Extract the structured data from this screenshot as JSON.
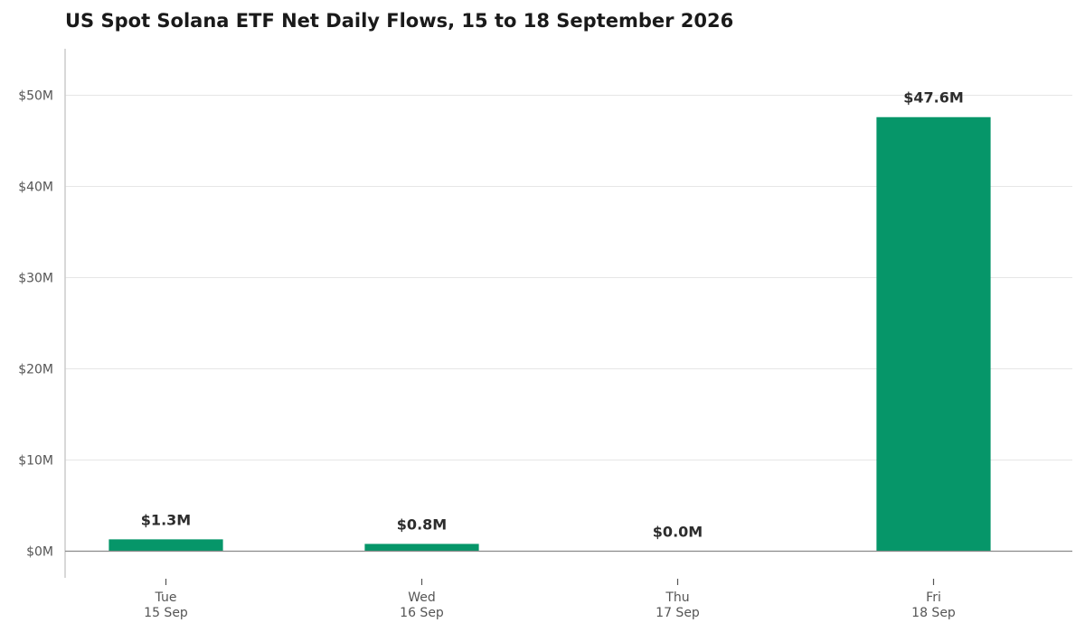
{
  "chart_data": {
    "type": "bar",
    "title": "US Spot Solana ETF Net Daily Flows, 15 to 18 September 2026",
    "xlabel": "",
    "ylabel": "",
    "categories": [
      [
        "Tue",
        "15 Sep"
      ],
      [
        "Wed",
        "16 Sep"
      ],
      [
        "Thu",
        "17 Sep"
      ],
      [
        "Fri",
        "18 Sep"
      ]
    ],
    "values": [
      1.3,
      0.8,
      0.0,
      47.6
    ],
    "value_labels": [
      "$1.3M",
      "$0.8M",
      "$0.0M",
      "$47.6M"
    ],
    "yticks": [
      0,
      10,
      20,
      30,
      40,
      50
    ],
    "ytick_labels": [
      "$0M",
      "$10M",
      "$20M",
      "$30M",
      "$40M",
      "$50M"
    ],
    "ylim": [
      -3,
      55
    ],
    "grid": true,
    "legend": "none",
    "bar_color": "#069669"
  }
}
